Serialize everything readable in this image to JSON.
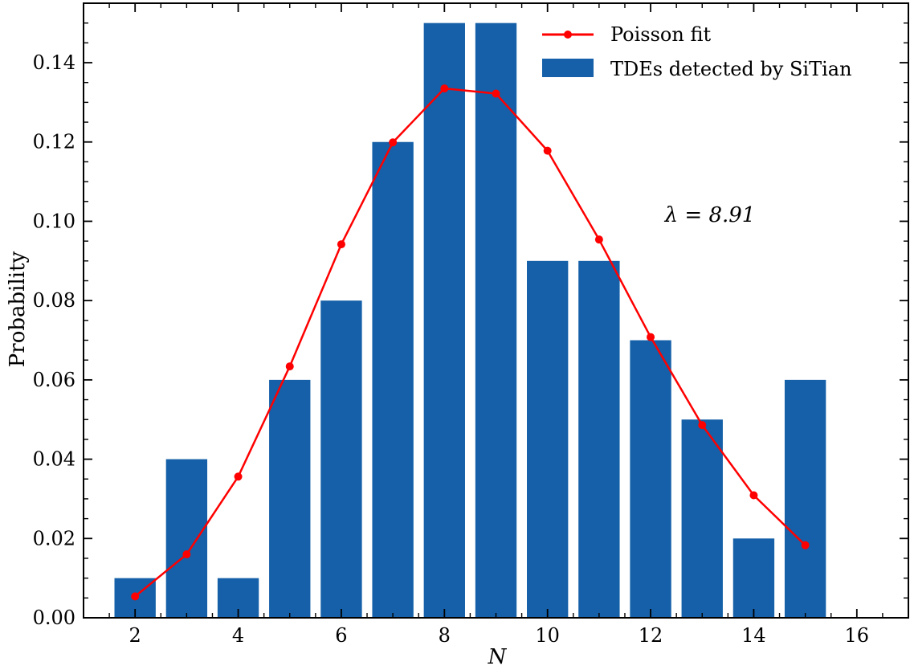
{
  "chart_data": {
    "type": "bar",
    "xlabel": "N",
    "ylabel": "Probability",
    "xlim": [
      1,
      17
    ],
    "ylim": [
      0,
      0.155
    ],
    "xticks": [
      2,
      4,
      6,
      8,
      10,
      12,
      14,
      16
    ],
    "yticks": [
      0.0,
      0.02,
      0.04,
      0.06,
      0.08,
      0.1,
      0.12,
      0.14
    ],
    "xtick_labels": [
      "2",
      "4",
      "6",
      "8",
      "10",
      "12",
      "14",
      "16"
    ],
    "ytick_labels": [
      "0.00",
      "0.02",
      "0.04",
      "0.06",
      "0.08",
      "0.10",
      "0.12",
      "0.14"
    ],
    "series": [
      {
        "name": "TDEs detected by SiTian",
        "kind": "bar",
        "color": "#1560a8",
        "x": [
          2,
          3,
          4,
          5,
          6,
          7,
          8,
          9,
          10,
          11,
          12,
          13,
          14,
          15
        ],
        "values": [
          0.01,
          0.04,
          0.01,
          0.06,
          0.08,
          0.12,
          0.15,
          0.15,
          0.09,
          0.09,
          0.07,
          0.05,
          0.02,
          0.06
        ]
      },
      {
        "name": "Poisson fit",
        "kind": "line",
        "color": "#ff0000",
        "x": [
          2,
          3,
          4,
          5,
          6,
          7,
          8,
          9,
          10,
          11,
          12,
          13,
          14,
          15
        ],
        "values": [
          0.0054,
          0.016,
          0.0356,
          0.0634,
          0.0942,
          0.1199,
          0.1335,
          0.1322,
          0.1178,
          0.0954,
          0.0708,
          0.0486,
          0.0309,
          0.0183
        ]
      }
    ],
    "legend": {
      "position": "upper-right",
      "entries": [
        "Poisson fit",
        "TDEs detected by SiTian"
      ]
    },
    "annotations": [
      {
        "text": "λ = 8.91",
        "x": 12.9,
        "y": 0.104
      }
    ],
    "grid": false
  }
}
